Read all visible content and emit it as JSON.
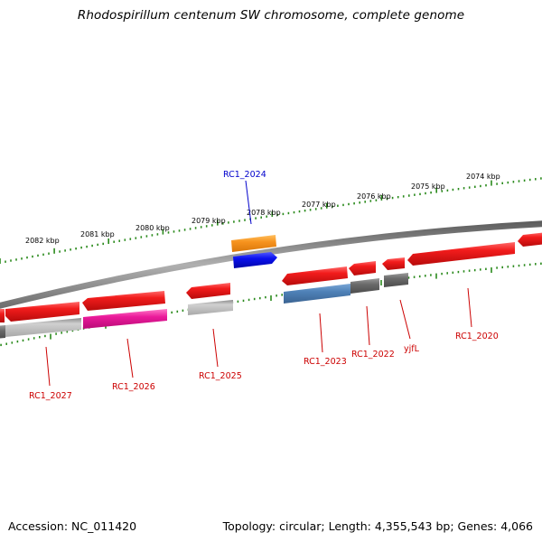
{
  "title": "Rhodospirillum centenum SW chromosome, complete genome",
  "footer": {
    "accession": "Accession: NC_011420",
    "stats": "Topology: circular; Length: 4,355,543 bp; Genes: 4,066"
  },
  "colors": {
    "cds": "#e8161b",
    "gene_grey": "#b8b8b8",
    "gene_dark_grey": "#6e6e6e",
    "backbone": "#7a7a7a",
    "scale_ticks": "#2a8a1c",
    "label_red": "#cc0000",
    "label_blue": "#0000cc",
    "orange": "#f7931e",
    "blue": "#0a10ee",
    "magenta": "#ea1a9a",
    "steel_blue": "#4f82b8"
  },
  "scale": {
    "unit": "kbp",
    "labels": [
      "2082 kbp",
      "2081 kbp",
      "2080 kbp",
      "2079 kbp",
      "2078 kbp",
      "2077 kbp",
      "2076 kbp",
      "2075 kbp",
      "2074 kbp"
    ]
  },
  "gene_labels": [
    {
      "name": "RC1_2024",
      "color": "blue"
    },
    {
      "name": "RC1_2027",
      "color": "red"
    },
    {
      "name": "RC1_2026",
      "color": "red"
    },
    {
      "name": "RC1_2025",
      "color": "red"
    },
    {
      "name": "RC1_2023",
      "color": "red"
    },
    {
      "name": "RC1_2022",
      "color": "red"
    },
    {
      "name": "yjfL",
      "color": "red"
    },
    {
      "name": "RC1_2020",
      "color": "red"
    }
  ]
}
